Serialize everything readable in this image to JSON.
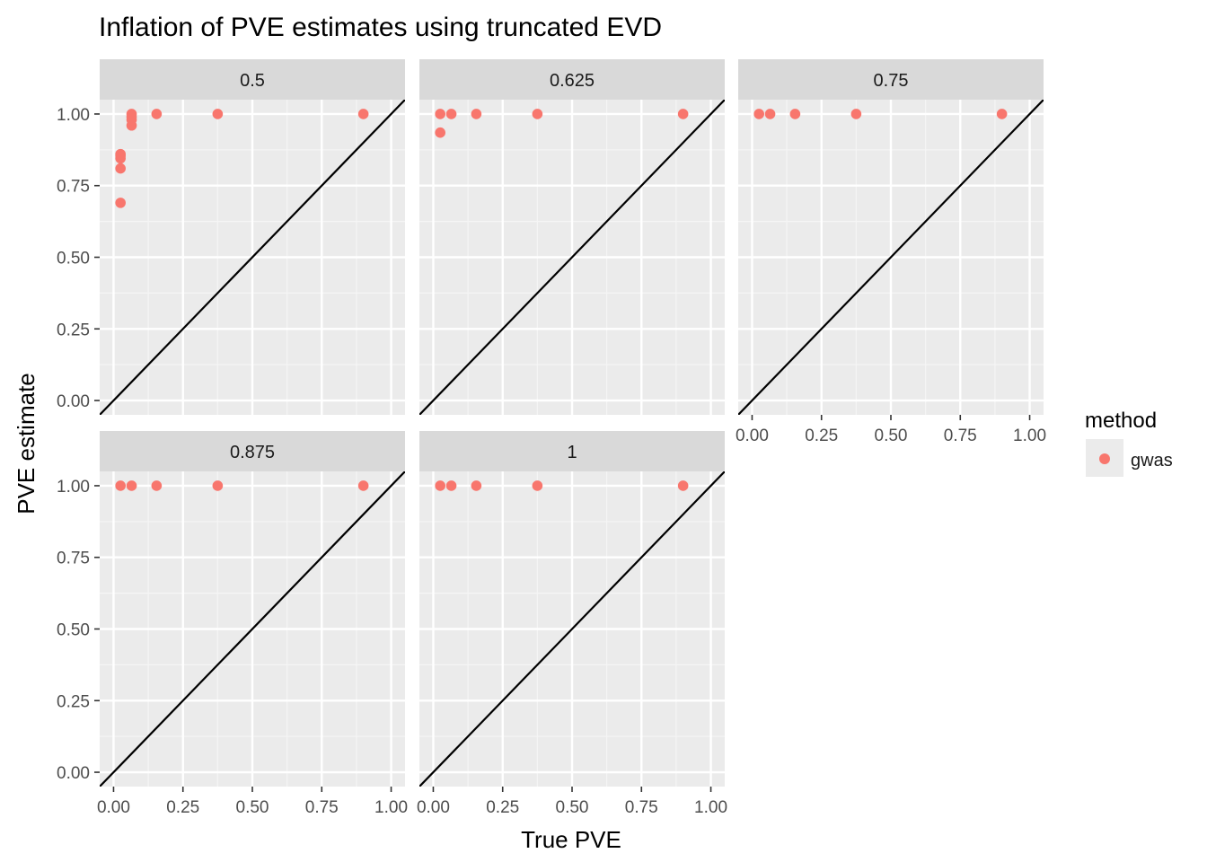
{
  "chart_data": {
    "type": "scatter",
    "title": "Inflation of PVE estimates using truncated EVD",
    "xlabel": "True PVE",
    "ylabel": "PVE estimate",
    "xlim": [
      -0.05,
      1.05
    ],
    "ylim": [
      -0.05,
      1.05
    ],
    "x_ticks": [
      "0.00",
      "0.25",
      "0.50",
      "0.75",
      "1.00"
    ],
    "y_ticks": [
      "0.00",
      "0.25",
      "0.50",
      "0.75",
      "1.00"
    ],
    "grid": true,
    "reference_line": "y = x",
    "facet_by": "panel",
    "legend": {
      "title": "method",
      "position": "right",
      "entries": [
        {
          "name": "gwas",
          "color": "#F8766D"
        }
      ]
    },
    "panels": [
      {
        "label": "0.5",
        "points": [
          {
            "x": 0.025,
            "y": 0.69
          },
          {
            "x": 0.025,
            "y": 0.81
          },
          {
            "x": 0.025,
            "y": 0.845
          },
          {
            "x": 0.025,
            "y": 0.855
          },
          {
            "x": 0.025,
            "y": 0.86
          },
          {
            "x": 0.065,
            "y": 0.96
          },
          {
            "x": 0.065,
            "y": 0.98
          },
          {
            "x": 0.065,
            "y": 0.99
          },
          {
            "x": 0.065,
            "y": 1.0
          },
          {
            "x": 0.155,
            "y": 1.0
          },
          {
            "x": 0.375,
            "y": 1.0
          },
          {
            "x": 0.9,
            "y": 1.0
          }
        ]
      },
      {
        "label": "0.625",
        "points": [
          {
            "x": 0.025,
            "y": 0.935
          },
          {
            "x": 0.025,
            "y": 1.0
          },
          {
            "x": 0.065,
            "y": 1.0
          },
          {
            "x": 0.155,
            "y": 1.0
          },
          {
            "x": 0.375,
            "y": 1.0
          },
          {
            "x": 0.9,
            "y": 1.0
          }
        ]
      },
      {
        "label": "0.75",
        "points": [
          {
            "x": 0.025,
            "y": 1.0
          },
          {
            "x": 0.065,
            "y": 1.0
          },
          {
            "x": 0.155,
            "y": 1.0
          },
          {
            "x": 0.375,
            "y": 1.0
          },
          {
            "x": 0.9,
            "y": 1.0
          }
        ]
      },
      {
        "label": "0.875",
        "points": [
          {
            "x": 0.025,
            "y": 1.0
          },
          {
            "x": 0.065,
            "y": 1.0
          },
          {
            "x": 0.155,
            "y": 1.0
          },
          {
            "x": 0.375,
            "y": 1.0
          },
          {
            "x": 0.9,
            "y": 1.0
          }
        ]
      },
      {
        "label": "1",
        "points": [
          {
            "x": 0.025,
            "y": 1.0
          },
          {
            "x": 0.065,
            "y": 1.0
          },
          {
            "x": 0.155,
            "y": 1.0
          },
          {
            "x": 0.375,
            "y": 1.0
          },
          {
            "x": 0.9,
            "y": 1.0
          }
        ]
      }
    ]
  }
}
